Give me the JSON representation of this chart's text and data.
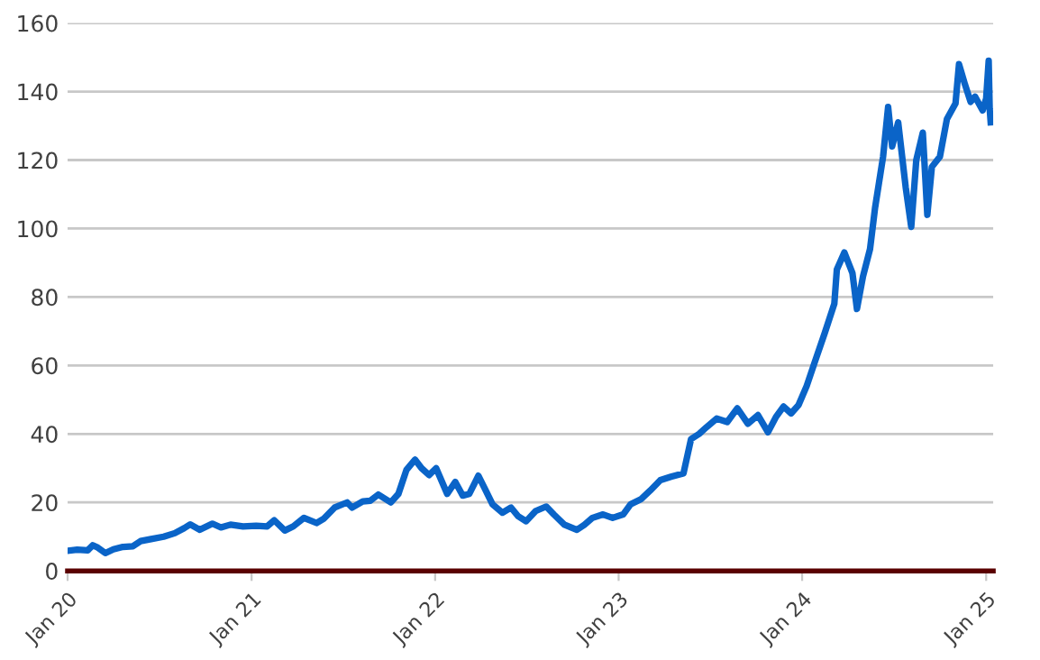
{
  "chart_data": {
    "type": "line",
    "color": "#0a64c8",
    "x": [
      "2020-01-01",
      "2020-01-20",
      "2020-02-10",
      "2020-02-20",
      "2020-03-01",
      "2020-03-16",
      "2020-04-01",
      "2020-04-20",
      "2020-05-10",
      "2020-05-25",
      "2020-06-15",
      "2020-07-10",
      "2020-08-01",
      "2020-08-20",
      "2020-09-01",
      "2020-09-20",
      "2020-10-15",
      "2020-11-01",
      "2020-11-20",
      "2020-12-15",
      "2021-01-10",
      "2021-02-01",
      "2021-02-15",
      "2021-03-08",
      "2021-03-25",
      "2021-04-15",
      "2021-05-10",
      "2021-05-25",
      "2021-06-15",
      "2021-07-10",
      "2021-07-20",
      "2021-08-10",
      "2021-08-25",
      "2021-09-10",
      "2021-10-05",
      "2021-10-20",
      "2021-11-05",
      "2021-11-22",
      "2021-12-05",
      "2021-12-20",
      "2022-01-03",
      "2022-01-25",
      "2022-02-10",
      "2022-02-25",
      "2022-03-10",
      "2022-03-28",
      "2022-04-10",
      "2022-04-25",
      "2022-05-15",
      "2022-06-01",
      "2022-06-15",
      "2022-07-01",
      "2022-07-20",
      "2022-08-10",
      "2022-08-25",
      "2022-09-15",
      "2022-10-10",
      "2022-10-25",
      "2022-11-10",
      "2022-12-01",
      "2022-12-20",
      "2023-01-10",
      "2023-01-25",
      "2023-02-15",
      "2023-03-05",
      "2023-03-25",
      "2023-04-15",
      "2023-05-10",
      "2023-05-25",
      "2023-06-10",
      "2023-06-25",
      "2023-07-15",
      "2023-08-05",
      "2023-08-25",
      "2023-09-15",
      "2023-10-05",
      "2023-10-25",
      "2023-11-10",
      "2023-11-25",
      "2023-12-10",
      "2023-12-25",
      "2024-01-10",
      "2024-01-25",
      "2024-02-15",
      "2024-03-05",
      "2024-03-10",
      "2024-03-25",
      "2024-04-10",
      "2024-04-19",
      "2024-05-01",
      "2024-05-15",
      "2024-05-25",
      "2024-06-10",
      "2024-06-20",
      "2024-06-28",
      "2024-07-10",
      "2024-07-25",
      "2024-08-05",
      "2024-08-15",
      "2024-08-28",
      "2024-09-06",
      "2024-09-15",
      "2024-10-01",
      "2024-10-15",
      "2024-11-01",
      "2024-11-08",
      "2024-11-20",
      "2024-12-01",
      "2024-12-10",
      "2024-12-25",
      "2025-01-01",
      "2025-01-06",
      "2025-01-08",
      "2025-01-10"
    ],
    "values": [
      5.9,
      6.2,
      6.0,
      7.5,
      6.8,
      5.2,
      6.3,
      7.0,
      7.2,
      8.7,
      9.3,
      10.0,
      11.0,
      12.5,
      13.6,
      12.0,
      13.8,
      12.7,
      13.5,
      13.0,
      13.2,
      13.0,
      14.8,
      11.8,
      13.0,
      15.5,
      14.0,
      15.3,
      18.5,
      20.0,
      18.5,
      20.3,
      20.5,
      22.3,
      20.0,
      22.5,
      29.5,
      32.5,
      30.0,
      28.0,
      30.0,
      22.5,
      26.0,
      22.0,
      22.5,
      27.8,
      24.0,
      19.5,
      17.0,
      18.5,
      16.0,
      14.5,
      17.5,
      18.8,
      16.5,
      13.5,
      12.0,
      13.5,
      15.5,
      16.5,
      15.5,
      16.5,
      19.5,
      21.0,
      23.5,
      26.5,
      27.5,
      28.5,
      38.5,
      40.0,
      42.0,
      44.5,
      43.5,
      47.5,
      43.0,
      45.5,
      40.5,
      45.0,
      48.0,
      46.0,
      48.5,
      54.0,
      60.5,
      69.5,
      78.0,
      88.0,
      93.0,
      87.0,
      76.5,
      86.0,
      94.0,
      106.0,
      121.0,
      135.5,
      124.0,
      131.0,
      112.0,
      100.5,
      120.0,
      128.0,
      104.0,
      118.0,
      121.0,
      132.0,
      136.5,
      148.0,
      142.0,
      137.0,
      138.5,
      134.5,
      138.0,
      149.0,
      135.0,
      131.0
    ],
    "xlim": [
      "2020-01-01",
      "2025-01-15"
    ],
    "xticks": [
      {
        "value": "2020-01-01",
        "label": "Jan 20"
      },
      {
        "value": "2021-01-01",
        "label": "Jan 21"
      },
      {
        "value": "2022-01-01",
        "label": "Jan 22"
      },
      {
        "value": "2023-01-01",
        "label": "Jan 23"
      },
      {
        "value": "2024-01-01",
        "label": "Jan 24"
      },
      {
        "value": "2025-01-01",
        "label": "Jan 25"
      }
    ],
    "ylim": [
      0,
      160
    ],
    "yticks": [
      0,
      20,
      40,
      60,
      80,
      100,
      120,
      140,
      160
    ],
    "grid": "y",
    "marker": "none",
    "line_style": "solid"
  }
}
